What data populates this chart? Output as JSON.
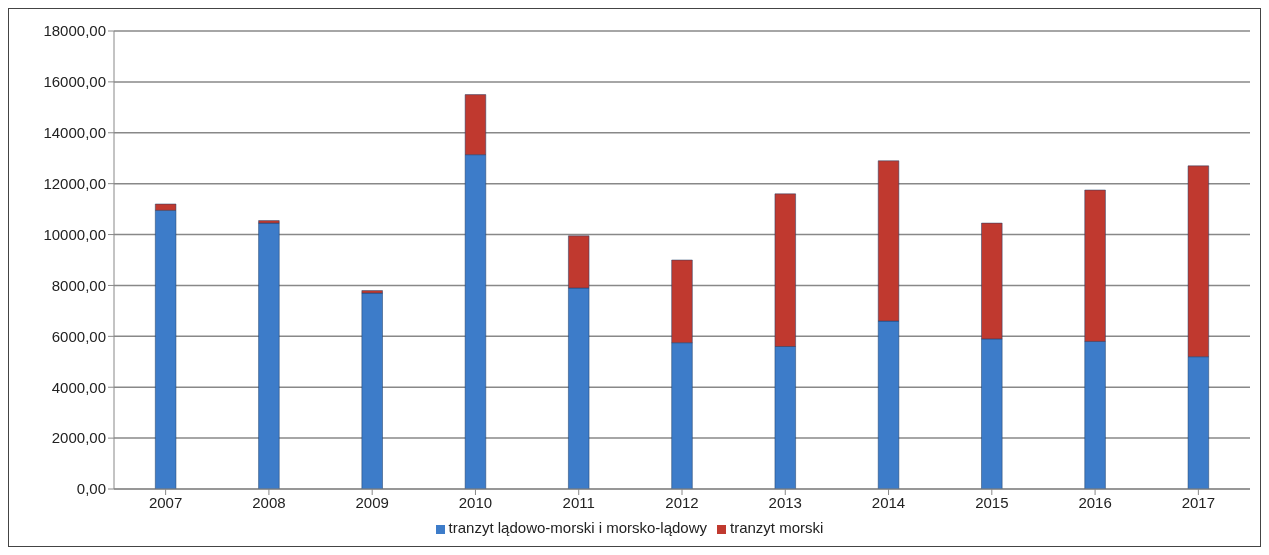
{
  "chart_data": {
    "type": "bar",
    "stacked": true,
    "categories": [
      "2007",
      "2008",
      "2009",
      "2010",
      "2011",
      "2012",
      "2013",
      "2014",
      "2015",
      "2016",
      "2017"
    ],
    "series": [
      {
        "name": "tranzyt lądowo-morski i morsko-lądowy",
        "color": "#3d7cc9",
        "values": [
          10950,
          10450,
          7700,
          13140,
          7900,
          5750,
          5600,
          6600,
          5900,
          5800,
          5200
        ]
      },
      {
        "name": "tranzyt morski",
        "color": "#c0392f",
        "values": [
          250,
          100,
          100,
          2360,
          2050,
          3250,
          6000,
          6300,
          4550,
          5950,
          7500
        ]
      }
    ],
    "ylim": [
      0,
      18000
    ],
    "yticks": [
      {
        "value": 0,
        "label": "0,00"
      },
      {
        "value": 2000,
        "label": "2000,00"
      },
      {
        "value": 4000,
        "label": "4000,00"
      },
      {
        "value": 6000,
        "label": "6000,00"
      },
      {
        "value": 8000,
        "label": "8000,00"
      },
      {
        "value": 10000,
        "label": "10000,00"
      },
      {
        "value": 12000,
        "label": "12000,00"
      },
      {
        "value": 14000,
        "label": "14000,00"
      },
      {
        "value": 16000,
        "label": "16000,00"
      },
      {
        "value": 18000,
        "label": "18000,00"
      }
    ],
    "grid": "y",
    "legend": "bottom"
  }
}
